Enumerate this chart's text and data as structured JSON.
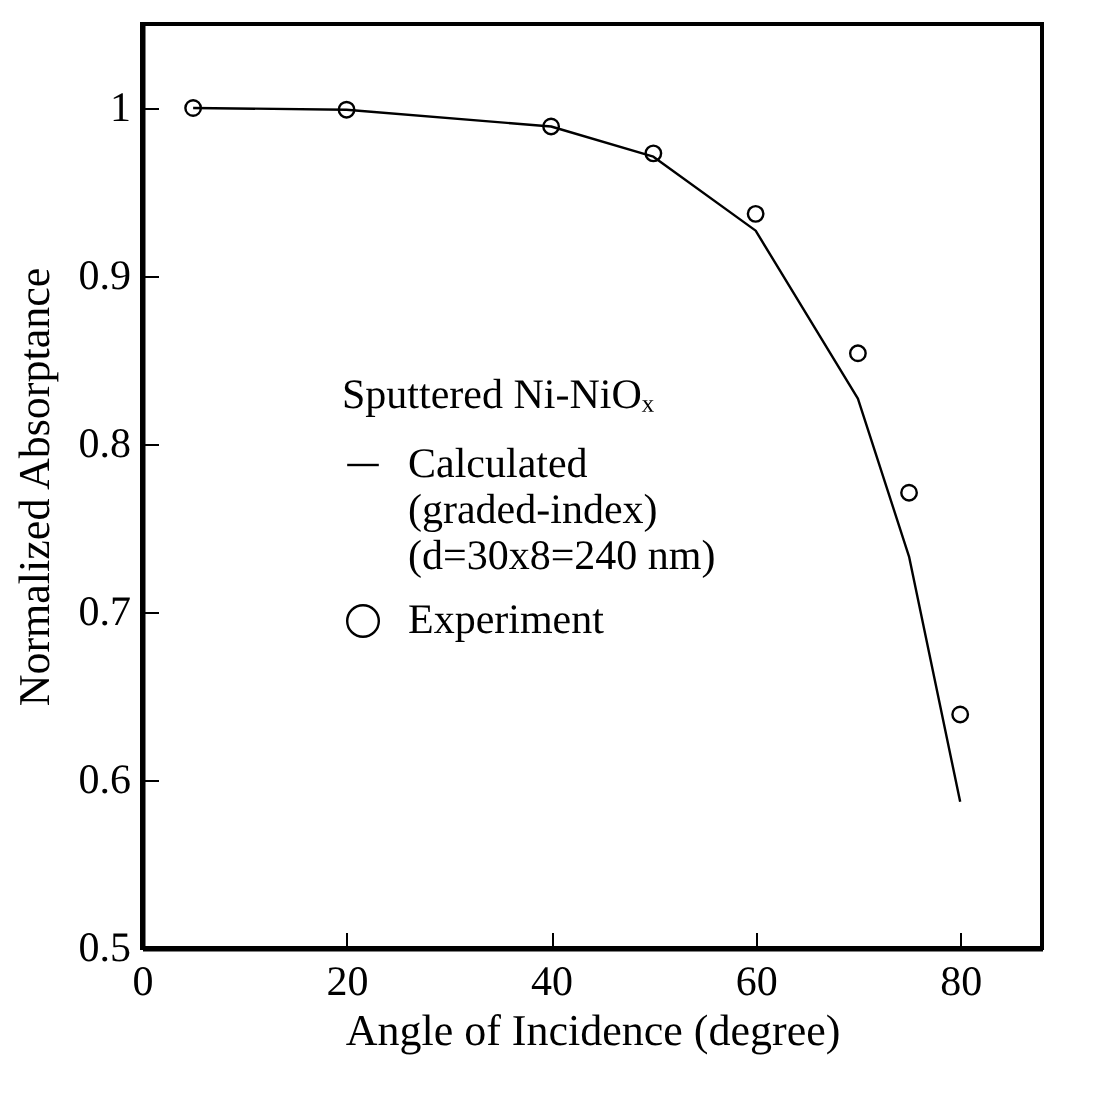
{
  "chart_data": {
    "type": "line",
    "xlabel": "Angle of Incidence (degree)",
    "ylabel": "Normalized Absorptance",
    "legend_title": "Sputtered Ni-NiOₓ",
    "legend": "left",
    "grid": false,
    "xlim": [
      0,
      88
    ],
    "xticks": [
      0,
      20,
      40,
      60,
      80
    ],
    "ylim": [
      0.5,
      1.05
    ],
    "yticks": [
      0.5,
      0.6,
      0.7,
      0.8,
      0.9,
      1
    ],
    "series": [
      {
        "name": "Calculated\n(graded-index)\n(d=30x8=240 nm)",
        "marker": "none",
        "color": "#000000",
        "x": [
          5,
          20,
          40,
          50,
          60,
          70,
          75,
          80
        ],
        "values": [
          1.0,
          0.999,
          0.989,
          0.971,
          0.927,
          0.827,
          0.733,
          0.587
        ]
      },
      {
        "name": "Experiment",
        "type": "scatter",
        "marker": "circle",
        "color": "#000000",
        "x": [
          5,
          20,
          40,
          50,
          60,
          70,
          75,
          80
        ],
        "values": [
          1.0,
          0.999,
          0.989,
          0.973,
          0.937,
          0.854,
          0.771,
          0.639
        ]
      }
    ]
  }
}
